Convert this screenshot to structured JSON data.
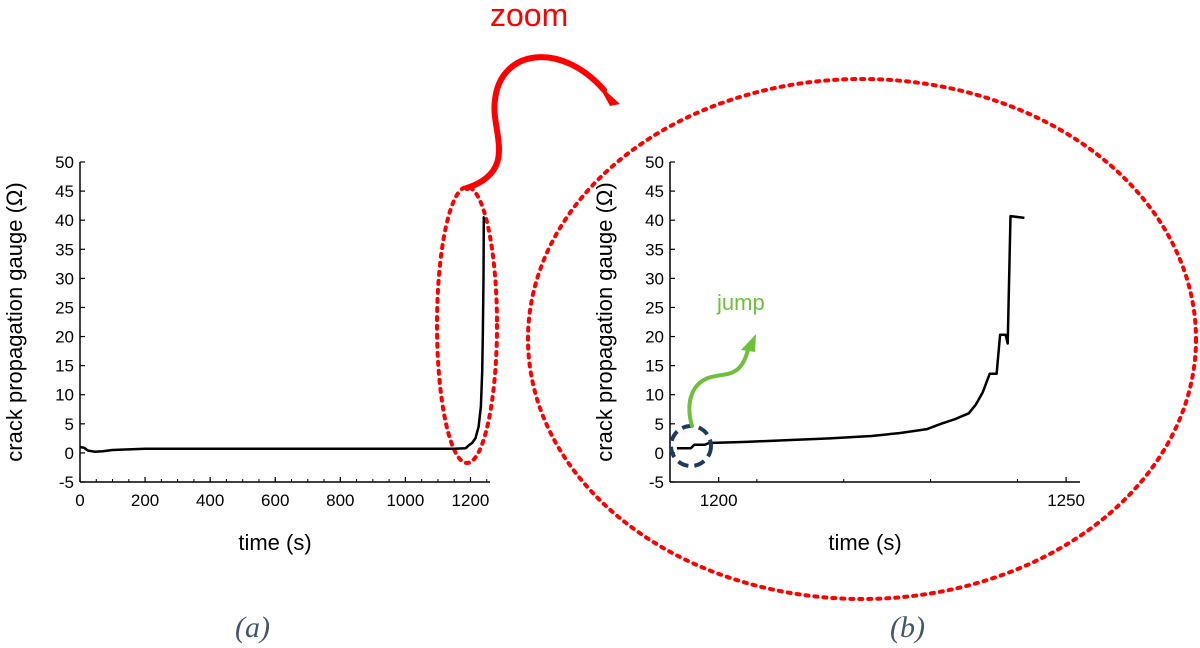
{
  "chart_data": [
    {
      "type": "line",
      "panel_label": "(a)",
      "xlabel": "time (s)",
      "ylabel": "crack propagation gauge (Ω)",
      "xlim": [
        0,
        1260
      ],
      "ylim": [
        -5,
        50
      ],
      "xticks": [
        "0",
        "200",
        "400",
        "600",
        "800",
        "1000",
        "1200"
      ],
      "yticks": [
        "-5",
        "0",
        "5",
        "10",
        "15",
        "20",
        "25",
        "30",
        "35",
        "40",
        "45",
        "50"
      ],
      "grid": false,
      "series": [
        {
          "color": "#000000",
          "points": [
            [
              0,
              1.0
            ],
            [
              12,
              0.9
            ],
            [
              25,
              0.4
            ],
            [
              45,
              0.2
            ],
            [
              70,
              0.3
            ],
            [
              100,
              0.5
            ],
            [
              150,
              0.6
            ],
            [
              200,
              0.7
            ],
            [
              400,
              0.7
            ],
            [
              600,
              0.7
            ],
            [
              800,
              0.7
            ],
            [
              1000,
              0.7
            ],
            [
              1150,
              0.7
            ],
            [
              1185,
              0.8
            ],
            [
              1195,
              1.3
            ],
            [
              1205,
              1.7
            ],
            [
              1215,
              2.5
            ],
            [
              1225,
              4.5
            ],
            [
              1232,
              8
            ],
            [
              1236,
              14
            ],
            [
              1238,
              20
            ],
            [
              1240,
              30
            ],
            [
              1241,
              40.5
            ],
            [
              1243,
              40.5
            ]
          ]
        }
      ]
    },
    {
      "type": "line",
      "panel_label": "(b)",
      "xlabel": "time (s)",
      "ylabel": "crack propagation gauge (Ω)",
      "xlim": [
        1193,
        1252
      ],
      "ylim": [
        -5,
        50
      ],
      "xticks": [
        "1200",
        "1250"
      ],
      "yticks": [
        "-5",
        "0",
        "5",
        "10",
        "15",
        "20",
        "25",
        "30",
        "35",
        "40",
        "45",
        "50"
      ],
      "grid": false,
      "series": [
        {
          "color": "#000000",
          "points": [
            [
              1194,
              0.8
            ],
            [
              1196,
              0.8
            ],
            [
              1196.5,
              1.4
            ],
            [
              1198,
              1.4
            ],
            [
              1198.6,
              1.7
            ],
            [
              1204,
              1.9
            ],
            [
              1210,
              2.2
            ],
            [
              1216,
              2.5
            ],
            [
              1222,
              2.9
            ],
            [
              1226,
              3.4
            ],
            [
              1230,
              4.1
            ],
            [
              1232,
              5.0
            ],
            [
              1234,
              5.8
            ],
            [
              1236,
              6.8
            ],
            [
              1237,
              8.3
            ],
            [
              1238,
              10.4
            ],
            [
              1239,
              13.6
            ],
            [
              1240,
              13.6
            ],
            [
              1240.5,
              20.3
            ],
            [
              1241.3,
              20.3
            ],
            [
              1241.6,
              18.8
            ],
            [
              1242,
              40.7
            ],
            [
              1244,
              40.4
            ]
          ]
        }
      ]
    }
  ],
  "annotations": {
    "zoom_label": "zoom",
    "jump_label": "jump",
    "zoom_color": "#ff0000",
    "jump_color": "#70bf3c",
    "jump_marker_color": "#1f3b5c",
    "panel_label_color": "#44546a"
  }
}
